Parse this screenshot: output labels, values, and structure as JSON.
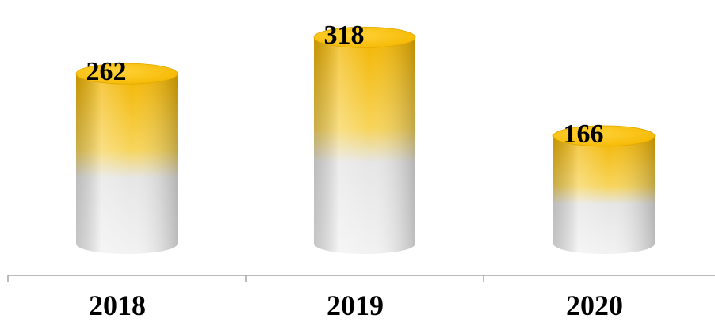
{
  "chart_data": {
    "type": "bar",
    "style": "3d-cylinder",
    "categories": [
      "2018",
      "2019",
      "2020"
    ],
    "values": [
      262,
      318,
      166
    ],
    "data_labels": [
      "262",
      "318",
      "166"
    ],
    "title": "",
    "xlabel": "",
    "ylabel": "",
    "ylim": [
      0,
      330
    ],
    "grid": false,
    "legend": "none",
    "colors": {
      "top_fill": "#F5B800",
      "top_highlight": "#FFD23A",
      "body_gold": "#F3B500",
      "body_silver": "#E6E6E6",
      "body_shadow": "#C8C8C8",
      "axis": "#A6A6A6",
      "label_text": "#000000"
    }
  }
}
